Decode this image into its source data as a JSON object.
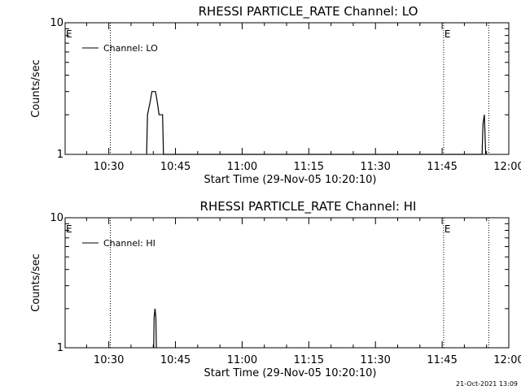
{
  "chart_data": [
    {
      "type": "line",
      "title": "RHESSI PARTICLE_RATE Channel: LO",
      "xlabel": "Start Time (29-Nov-05 10:20:10)",
      "ylabel": "Counts/sec",
      "yscale": "log",
      "ylim": [
        1,
        10
      ],
      "yticks": [
        {
          "value": 1,
          "label": "1"
        },
        {
          "value": 10,
          "label": "10"
        }
      ],
      "xlim_minutes_after_10_00": [
        20.17,
        120
      ],
      "xticks": [
        {
          "t": 30,
          "label": "10:30"
        },
        {
          "t": 45,
          "label": "10:45"
        },
        {
          "t": 60,
          "label": "11:00"
        },
        {
          "t": 75,
          "label": "11:15"
        },
        {
          "t": 90,
          "label": "11:30"
        },
        {
          "t": 105,
          "label": "11:45"
        },
        {
          "t": 120,
          "label": "12:00"
        }
      ],
      "legend": {
        "label": "Channel: LO",
        "position": "top-left"
      },
      "event_lines": [
        {
          "t": 20.17,
          "label": "E"
        },
        {
          "t": 30.33,
          "label": ""
        },
        {
          "t": 105.33,
          "label": "E"
        },
        {
          "t": 115.5,
          "label": ""
        }
      ],
      "series": [
        {
          "name": "Channel: LO",
          "points": [
            [
              38.5,
              1
            ],
            [
              38.7,
              2
            ],
            [
              39.3,
              2.5
            ],
            [
              39.7,
              3
            ],
            [
              40.5,
              3
            ],
            [
              40.9,
              2.5
            ],
            [
              41.3,
              2
            ],
            [
              42.1,
              2
            ],
            [
              42.3,
              1
            ],
            [
              114.0,
              1
            ],
            [
              114.2,
              1.7
            ],
            [
              114.5,
              2
            ],
            [
              114.8,
              1
            ]
          ]
        }
      ]
    },
    {
      "type": "line",
      "title": "RHESSI PARTICLE_RATE Channel: HI",
      "xlabel": "Start Time (29-Nov-05 10:20:10)",
      "ylabel": "Counts/sec",
      "yscale": "log",
      "ylim": [
        1,
        10
      ],
      "yticks": [
        {
          "value": 1,
          "label": "1"
        },
        {
          "value": 10,
          "label": "10"
        }
      ],
      "xlim_minutes_after_10_00": [
        20.17,
        120
      ],
      "xticks": [
        {
          "t": 30,
          "label": "10:30"
        },
        {
          "t": 45,
          "label": "10:45"
        },
        {
          "t": 60,
          "label": "11:00"
        },
        {
          "t": 75,
          "label": "11:15"
        },
        {
          "t": 90,
          "label": "11:30"
        },
        {
          "t": 105,
          "label": "11:45"
        },
        {
          "t": 120,
          "label": "12:00"
        }
      ],
      "legend": {
        "label": "Channel: HI",
        "position": "top-left"
      },
      "event_lines": [
        {
          "t": 20.17,
          "label": "E"
        },
        {
          "t": 30.33,
          "label": ""
        },
        {
          "t": 105.33,
          "label": "E"
        },
        {
          "t": 115.5,
          "label": ""
        }
      ],
      "series": [
        {
          "name": "Channel: HI",
          "points": [
            [
              40.1,
              1
            ],
            [
              40.2,
              1.7
            ],
            [
              40.4,
              2
            ],
            [
              40.6,
              1.7
            ],
            [
              40.7,
              1
            ]
          ]
        }
      ]
    }
  ],
  "timestamp": "21-Oct-2021 13:09"
}
